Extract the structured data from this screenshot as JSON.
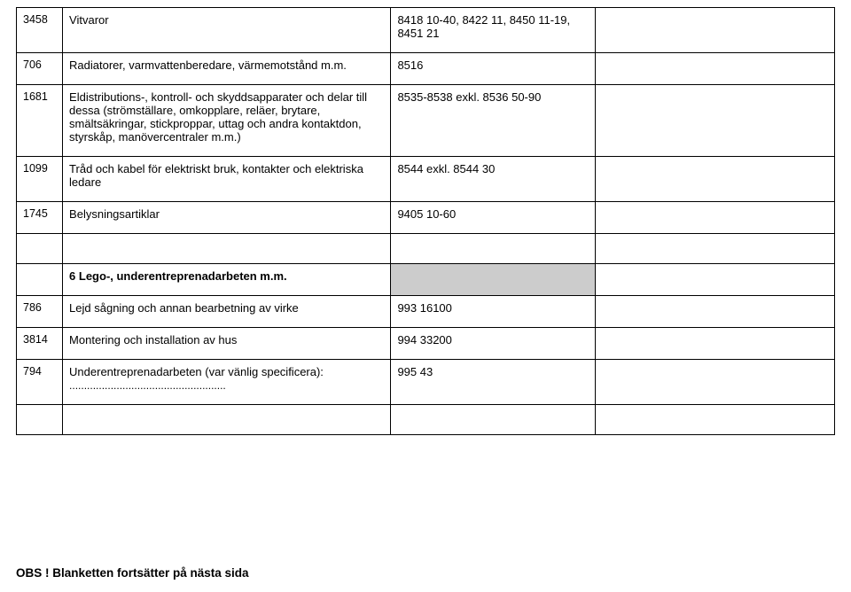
{
  "table1": {
    "cols": [
      "col0",
      "col1",
      "col2",
      "col3"
    ],
    "rows": [
      {
        "c0": "3458",
        "c1": "Vitvaror",
        "c2": "8418 10-40, 8422 11, 8450 11-19, 8451 21",
        "c3": ""
      },
      {
        "c0": "706",
        "c1": "Radiatorer, varmvattenberedare, värmemotstånd m.m.",
        "c2": "8516",
        "c3": ""
      },
      {
        "c0": "1681",
        "c1": "Eldistributions-, kontroll- och skyddsapparater och delar till dessa (strömställare, omkopplare, reläer, brytare, smältsäkringar, stickproppar, uttag och andra kontaktdon, styrskåp, manövercentraler m.m.)",
        "c2": "8535-8538 exkl. 8536 50-90",
        "c3": ""
      },
      {
        "c0": "1099",
        "c1": "Tråd och kabel för elektriskt bruk, kontakter och elektriska ledare",
        "c2": "8544 exkl. 8544 30",
        "c3": ""
      },
      {
        "c0": "1745",
        "c1": "Belysningsartiklar",
        "c2": "9405 10-60",
        "c3": ""
      }
    ]
  },
  "section": {
    "title": "6 Lego-, underentreprenadarbeten m.m."
  },
  "table2": {
    "rows": [
      {
        "c0": "786",
        "c1": "Lejd sågning och annan bearbetning av virke",
        "c2": "993 16100",
        "c3": ""
      },
      {
        "c0": "3814",
        "c1": "Montering och installation av hus",
        "c2": "994 33200",
        "c3": ""
      },
      {
        "c0": "794",
        "c1": "Underentreprenadarbeten (var vänlig specificera):",
        "c1b": ".....................................................",
        "c2": "995 43",
        "c3": ""
      }
    ]
  },
  "footer": "OBS ! Blanketten fortsätter på nästa sida"
}
